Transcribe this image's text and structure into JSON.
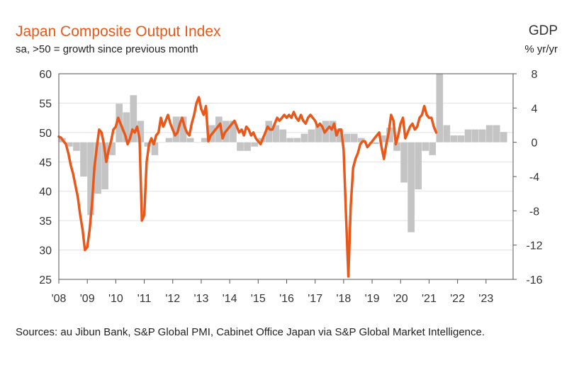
{
  "title": "Japan Composite Output Index",
  "subtitle": "sa, >50 = growth since previous month",
  "gdp_title": "GDP",
  "gdp_unit": "% yr/yr",
  "source": "Sources: au Jibun Bank, S&P Global PMI, Cabinet Office Japan via S&P Global Market Intelligence.",
  "colors": {
    "pmi": "#e8581b",
    "gdp": "#c4c4c4",
    "axis": "#555555"
  },
  "chart_data": {
    "type": "bar+line",
    "left_axis": {
      "ylim": [
        25,
        60
      ],
      "ticks": [
        "60",
        "55",
        "50",
        "45",
        "40",
        "35",
        "30",
        "25"
      ]
    },
    "right_axis": {
      "ylim": [
        -16,
        8
      ],
      "ticks": [
        "8",
        "4",
        "0",
        "-4",
        "-8",
        "-12",
        "-16"
      ]
    },
    "x_axis": {
      "xlim": [
        2008.0,
        2023.95
      ],
      "ticks": [
        "'08",
        "'09",
        "'10",
        "'11",
        "'12",
        "'13",
        "'14",
        "'15",
        "'16",
        "'17",
        "'18",
        "'19",
        "'20",
        "'21",
        "'22",
        "'23"
      ]
    },
    "grid": true,
    "gdp": {
      "axis": "right",
      "quarters": [
        2008.0,
        2008.25,
        2008.5,
        2008.75,
        2009.0,
        2009.25,
        2009.5,
        2009.75,
        2010.0,
        2010.25,
        2010.5,
        2010.75,
        2011.0,
        2011.25,
        2011.5,
        2011.75,
        2012.0,
        2012.25,
        2012.5,
        2012.75,
        2013.0,
        2013.25,
        2013.5,
        2013.75,
        2014.0,
        2014.25,
        2014.5,
        2014.75,
        2015.0,
        2015.25,
        2015.5,
        2015.75,
        2016.0,
        2016.25,
        2016.5,
        2016.75,
        2017.0,
        2017.25,
        2017.5,
        2017.75,
        2018.0,
        2018.25,
        2018.5,
        2018.75,
        2019.0,
        2019.25,
        2019.5,
        2019.75,
        2020.0,
        2020.25,
        2020.5,
        2020.75,
        2021.0,
        2021.25,
        2021.5,
        2021.75,
        2022.0,
        2022.25,
        2022.5,
        2022.75,
        2023.0,
        2023.25,
        2023.5
      ],
      "values": [
        0.5,
        -0.5,
        -1.0,
        -4.0,
        -8.5,
        -6.0,
        -5.5,
        -1.5,
        4.5,
        3.5,
        5.5,
        2.5,
        -0.5,
        -1.5,
        0,
        0.5,
        3.0,
        3.0,
        0.5,
        0,
        0.5,
        2.0,
        3.0,
        2.5,
        2.5,
        -1.0,
        -1.0,
        -0.5,
        0.5,
        2.5,
        2.0,
        1.5,
        0.5,
        0.5,
        1.0,
        1.5,
        2.0,
        2.5,
        2.5,
        1.5,
        1.0,
        1.0,
        0.5,
        0,
        -0.2,
        0.8,
        1.7,
        -1.0,
        -4.7,
        -10.5,
        -5.5,
        -1.0,
        -1.5,
        8.0,
        2.0,
        0.8,
        0.8,
        1.5,
        1.5,
        1.5,
        2.0,
        2.0,
        1.2
      ]
    },
    "pmi": {
      "axis": "left",
      "x_start": 2008.0,
      "step": 0.08333,
      "values": [
        49.3,
        49.1,
        48.5,
        48.0,
        46.5,
        44.5,
        43.0,
        41.0,
        39.0,
        36.0,
        33.5,
        30.0,
        30.5,
        33.5,
        38.0,
        44.0,
        47.5,
        50.5,
        50.0,
        48.0,
        45.0,
        47.0,
        48.5,
        50.5,
        51.0,
        52.5,
        51.5,
        50.5,
        49.5,
        48.0,
        49.0,
        50.5,
        50.0,
        51.0,
        49.0,
        35.0,
        36.0,
        45.0,
        48.0,
        49.0,
        48.0,
        49.5,
        50.0,
        52.5,
        51.0,
        52.0,
        53.0,
        51.5,
        50.5,
        49.5,
        50.0,
        51.5,
        52.5,
        51.0,
        50.0,
        49.5,
        51.5,
        53.0,
        55.0,
        56.0,
        54.0,
        53.0,
        54.5,
        48.5,
        49.5,
        50.0,
        50.5,
        51.0,
        51.5,
        49.0,
        50.0,
        50.5,
        51.0,
        51.5,
        52.0,
        51.0,
        50.0,
        50.5,
        49.5,
        51.0,
        50.5,
        49.5,
        50.0,
        49.0,
        48.5,
        48.0,
        49.0,
        50.0,
        51.0,
        50.5,
        50.5,
        51.5,
        52.5,
        52.0,
        52.5,
        53.0,
        52.5,
        53.0,
        52.5,
        53.5,
        52.5,
        52.0,
        53.0,
        52.0,
        51.5,
        52.5,
        53.0,
        52.5,
        52.0,
        51.0,
        51.5,
        51.0,
        50.0,
        50.5,
        51.0,
        50.5,
        51.5,
        49.5,
        50.5,
        50.5,
        47.0,
        36.0,
        25.5,
        37.5,
        44.0,
        45.5,
        46.5,
        48.0,
        48.5,
        48.5,
        47.5,
        48.0,
        48.5,
        49.0,
        49.5,
        50.0,
        47.5,
        45.5,
        48.0,
        50.0,
        53.0,
        52.0,
        48.0,
        49.5,
        51.5,
        52.5,
        49.0,
        50.0,
        51.0,
        51.5,
        50.5,
        51.0,
        52.5,
        53.0,
        54.5,
        53.0,
        52.5,
        52.5,
        51.0,
        50.0
      ]
    }
  }
}
